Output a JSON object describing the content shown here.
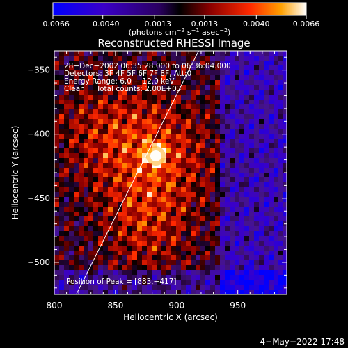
{
  "chart_data": {
    "type": "heatmap",
    "title": "Reconstructed RHESSI Image",
    "xlabel": "Heliocentric X (arcsec)",
    "ylabel": "Heliocentric Y (arcsec)",
    "xlim": [
      800,
      990
    ],
    "ylim": [
      -525,
      -335
    ],
    "x_ticks": [
      800,
      850,
      900,
      950
    ],
    "y_ticks": [
      -500,
      -450,
      -400,
      -350
    ],
    "x_tick_labels": [
      "800",
      "850",
      "900",
      "950"
    ],
    "y_tick_labels": [
      "−500",
      "−450",
      "−400",
      "−350"
    ],
    "colorbar": {
      "range": [
        -0.0066,
        0.0066
      ],
      "ticks": [
        -0.0066,
        -0.004,
        -0.0013,
        0.0013,
        0.004,
        0.0066
      ],
      "tick_labels": [
        "−0.0066",
        "−0.0040",
        "−0.0013",
        "0.0013",
        "0.0040",
        "0.0066"
      ],
      "units_text": "(photons cm",
      "units_exp1": "−2",
      "units_mid": " s",
      "units_exp2": "−1",
      "units_end": " asec",
      "units_exp3": "−2",
      "units_close": ")"
    },
    "info_lines": [
      "28−Dec−2002 06:35:28.000 to 06:36:04.000",
      "Detectors: 3F 4F 5F 6F 7F 8F, Att:0",
      "Energy Range: 6.0 − 12.0 keV",
      "Clean     Total counts: 2.00E+03"
    ],
    "peak_label": "Position of Peak = [883,−417]",
    "peak": [
      883,
      -417
    ],
    "limb_line": [
      [
        818,
        -525
      ],
      [
        918,
        -335
      ]
    ],
    "date_stamp": "4−May−2022 17:48"
  }
}
